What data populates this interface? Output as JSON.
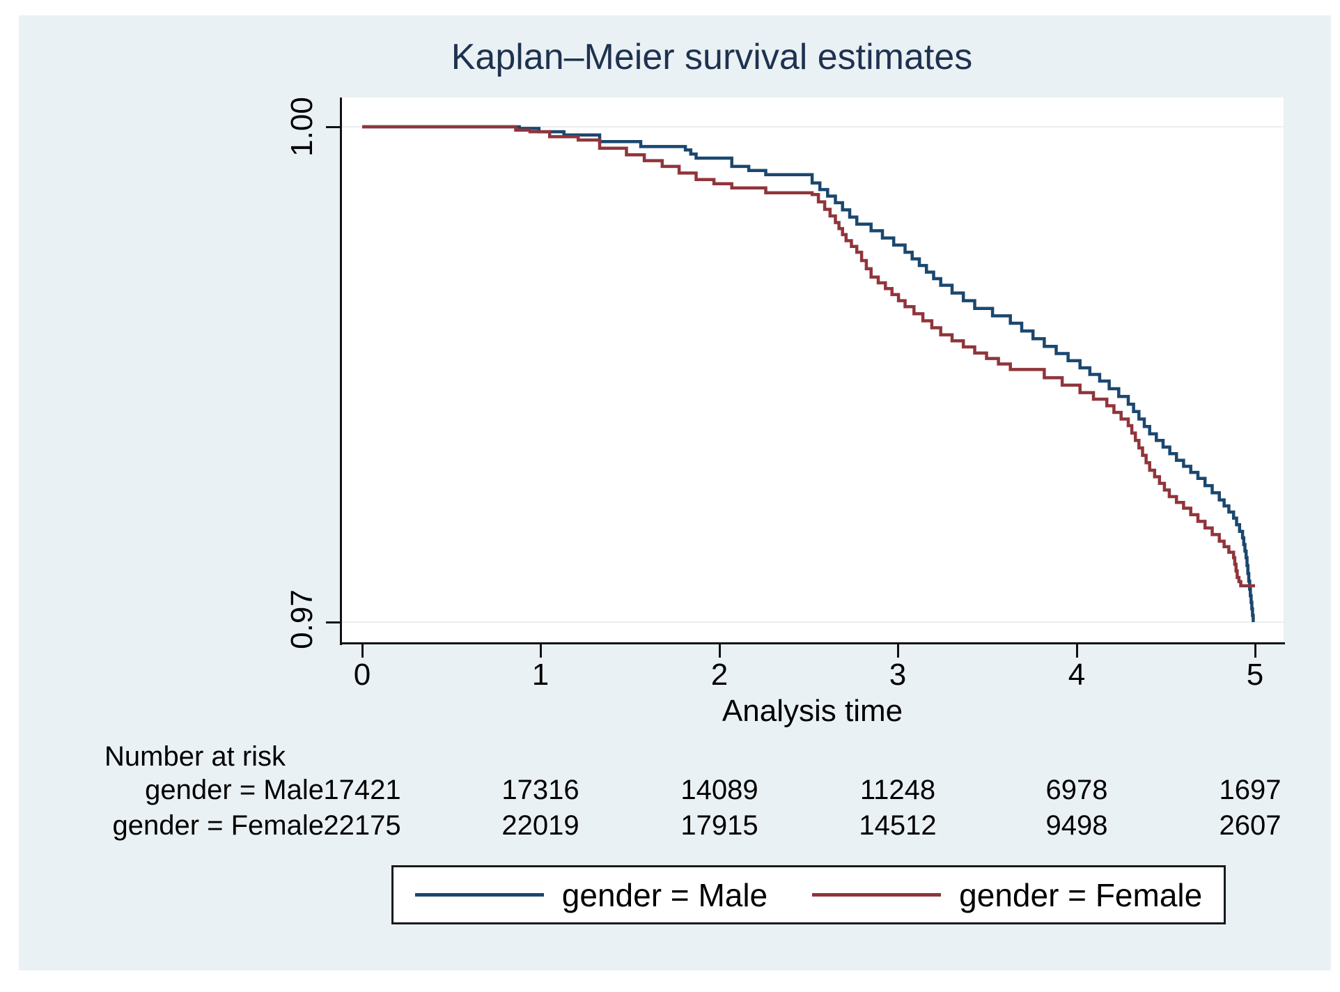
{
  "figure": {
    "background_color": "#eaf1f4",
    "plot_background_color": "#ffffff",
    "title_color": "#1e3150"
  },
  "chart_data": {
    "type": "line",
    "subtype": "kaplan-meier-step",
    "title": "Kaplan–Meier survival estimates",
    "xlabel": "Analysis time",
    "ylabel": "",
    "xlim": [
      0,
      5.16
    ],
    "ylim": [
      0.9687,
      1.0018
    ],
    "x_ticks": [
      0,
      1,
      2,
      3,
      4,
      5
    ],
    "y_ticks": [
      {
        "value": 1.0,
        "label": "1.00"
      },
      {
        "value": 0.97,
        "label": "0.97"
      }
    ],
    "grid": "horizontal-at-yticks",
    "legend_position": "bottom",
    "series": [
      {
        "name": "gender = Male",
        "color": "#1a476f",
        "points": [
          [
            0,
            1.0
          ],
          [
            0.7,
            1.0
          ],
          [
            0.88,
            0.9999
          ],
          [
            0.99,
            0.9997
          ],
          [
            1.13,
            0.9995
          ],
          [
            1.33,
            0.9991
          ],
          [
            1.56,
            0.9988
          ],
          [
            1.81,
            0.9986
          ],
          [
            1.87,
            0.9981
          ],
          [
            2.07,
            0.9976
          ],
          [
            2.26,
            0.9971
          ],
          [
            2.52,
            0.9966
          ],
          [
            2.65,
            0.9954
          ],
          [
            2.77,
            0.9941
          ],
          [
            2.85,
            0.9937
          ],
          [
            3.04,
            0.9924
          ],
          [
            3.24,
            0.9904
          ],
          [
            3.43,
            0.989
          ],
          [
            3.63,
            0.9881
          ],
          [
            3.82,
            0.9867
          ],
          [
            4.02,
            0.9854
          ],
          [
            4.13,
            0.9846
          ],
          [
            4.29,
            0.9832
          ],
          [
            4.41,
            0.9814
          ],
          [
            4.56,
            0.9798
          ],
          [
            4.68,
            0.9787
          ],
          [
            4.8,
            0.9774
          ],
          [
            4.88,
            0.9763
          ],
          [
            4.93,
            0.9751
          ],
          [
            4.95,
            0.9739
          ],
          [
            4.97,
            0.972
          ],
          [
            4.99,
            0.97
          ]
        ]
      },
      {
        "name": "gender = Female",
        "color": "#90353b",
        "points": [
          [
            0,
            1.0
          ],
          [
            0.66,
            1.0
          ],
          [
            0.86,
            0.9998
          ],
          [
            0.94,
            0.9997
          ],
          [
            1.05,
            0.9994
          ],
          [
            1.21,
            0.9992
          ],
          [
            1.33,
            0.9987
          ],
          [
            1.48,
            0.9983
          ],
          [
            1.68,
            0.9976
          ],
          [
            1.87,
            0.9968
          ],
          [
            2.07,
            0.9963
          ],
          [
            2.26,
            0.996
          ],
          [
            2.52,
            0.9959
          ],
          [
            2.59,
            0.995
          ],
          [
            2.65,
            0.9942
          ],
          [
            2.71,
            0.9931
          ],
          [
            2.77,
            0.9924
          ],
          [
            2.85,
            0.9909
          ],
          [
            2.93,
            0.9902
          ],
          [
            3.04,
            0.9891
          ],
          [
            3.24,
            0.9874
          ],
          [
            3.43,
            0.9863
          ],
          [
            3.63,
            0.9853
          ],
          [
            3.82,
            0.9848
          ],
          [
            4.02,
            0.9839
          ],
          [
            4.17,
            0.9831
          ],
          [
            4.29,
            0.9819
          ],
          [
            4.41,
            0.9792
          ],
          [
            4.52,
            0.9776
          ],
          [
            4.6,
            0.9769
          ],
          [
            4.72,
            0.9757
          ],
          [
            4.8,
            0.9749
          ],
          [
            4.88,
            0.9739
          ],
          [
            4.9,
            0.9727
          ],
          [
            4.92,
            0.9722
          ],
          [
            5.0,
            0.9722
          ]
        ]
      }
    ],
    "risk_table": {
      "header": "Number at risk",
      "time_points": [
        0,
        1,
        2,
        3,
        4,
        5
      ],
      "rows": [
        {
          "label": "gender = Male",
          "values": [
            "17421",
            "17316",
            "14089",
            "11248",
            "6978",
            "1697"
          ]
        },
        {
          "label": "gender = Female",
          "values": [
            "22175",
            "22019",
            "17915",
            "14512",
            "9498",
            "2607"
          ]
        }
      ]
    }
  },
  "legend": {
    "entries": [
      {
        "label": "gender = Male",
        "color": "#1a476f"
      },
      {
        "label": "gender = Female",
        "color": "#90353b"
      }
    ]
  }
}
